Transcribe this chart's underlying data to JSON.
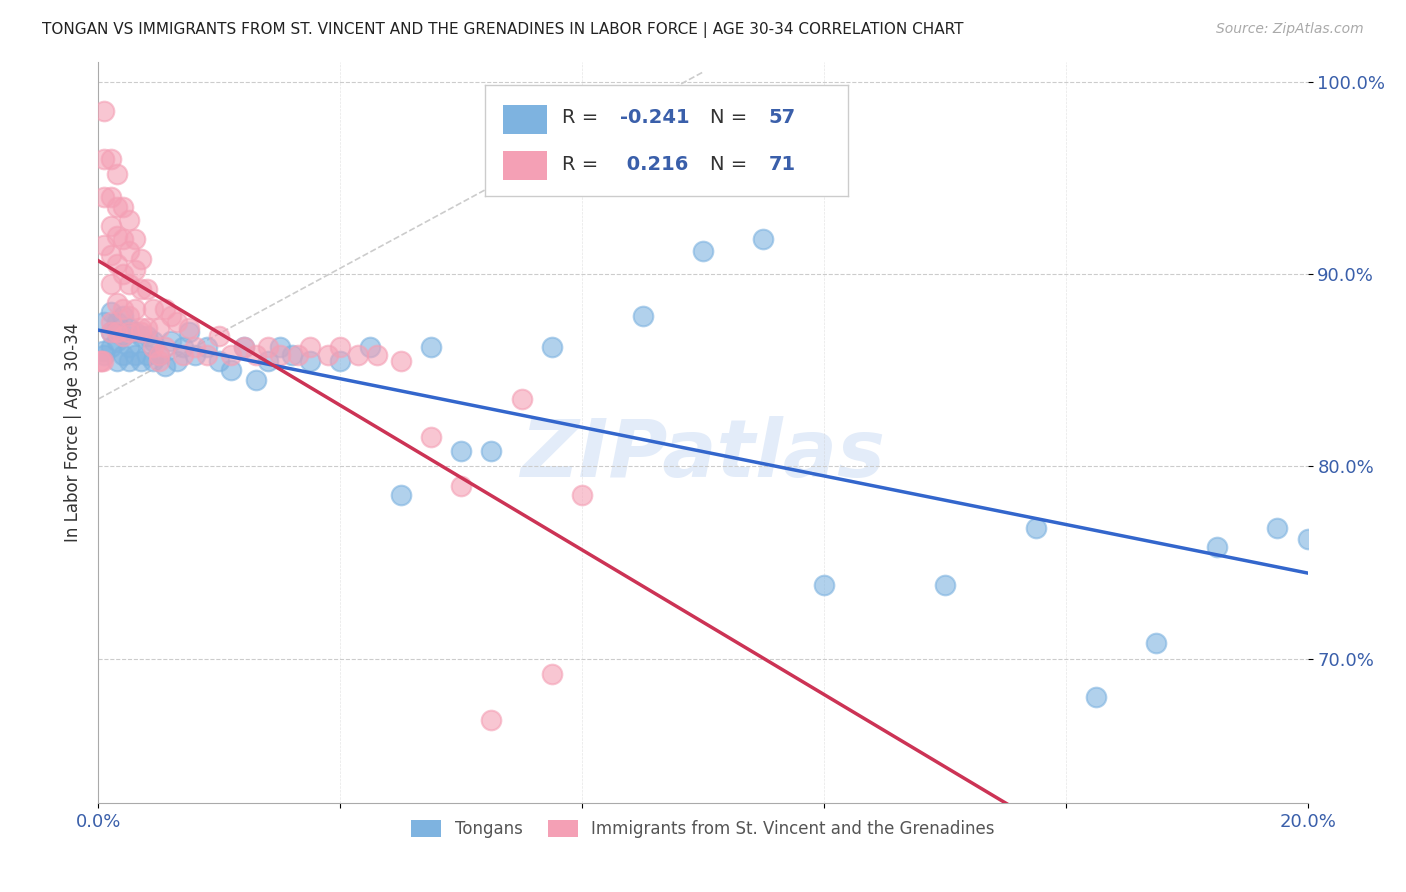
{
  "title": "TONGAN VS IMMIGRANTS FROM ST. VINCENT AND THE GRENADINES IN LABOR FORCE | AGE 30-34 CORRELATION CHART",
  "source": "Source: ZipAtlas.com",
  "ylabel": "In Labor Force | Age 30-34",
  "legend_label_blue": "Tongans",
  "legend_label_pink": "Immigrants from St. Vincent and the Grenadines",
  "R_blue": -0.241,
  "N_blue": 57,
  "R_pink": 0.216,
  "N_pink": 71,
  "blue_color": "#7eb3e0",
  "pink_color": "#f4a0b5",
  "trend_blue": "#3366cc",
  "trend_pink": "#cc3355",
  "ref_line_color": "#cccccc",
  "xmin": 0.0,
  "xmax": 0.2,
  "ymin": 0.625,
  "ymax": 1.01,
  "blue_x": [
    0.0008,
    0.001,
    0.001,
    0.002,
    0.002,
    0.002,
    0.003,
    0.003,
    0.003,
    0.004,
    0.004,
    0.004,
    0.005,
    0.005,
    0.005,
    0.006,
    0.006,
    0.007,
    0.007,
    0.008,
    0.008,
    0.009,
    0.009,
    0.01,
    0.011,
    0.012,
    0.013,
    0.014,
    0.015,
    0.016,
    0.018,
    0.02,
    0.022,
    0.024,
    0.026,
    0.028,
    0.03,
    0.032,
    0.035,
    0.04,
    0.045,
    0.05,
    0.055,
    0.06,
    0.065,
    0.075,
    0.09,
    0.1,
    0.11,
    0.12,
    0.14,
    0.155,
    0.165,
    0.175,
    0.185,
    0.195,
    0.2
  ],
  "blue_y": [
    0.86,
    0.858,
    0.875,
    0.862,
    0.87,
    0.88,
    0.855,
    0.865,
    0.875,
    0.858,
    0.868,
    0.878,
    0.855,
    0.862,
    0.872,
    0.858,
    0.87,
    0.855,
    0.868,
    0.858,
    0.868,
    0.855,
    0.865,
    0.858,
    0.852,
    0.865,
    0.855,
    0.862,
    0.87,
    0.858,
    0.862,
    0.855,
    0.85,
    0.862,
    0.845,
    0.855,
    0.862,
    0.858,
    0.855,
    0.855,
    0.862,
    0.785,
    0.862,
    0.808,
    0.808,
    0.862,
    0.878,
    0.912,
    0.918,
    0.738,
    0.738,
    0.768,
    0.68,
    0.708,
    0.758,
    0.768,
    0.762
  ],
  "pink_x": [
    0.0003,
    0.0005,
    0.0007,
    0.001,
    0.001,
    0.001,
    0.001,
    0.002,
    0.002,
    0.002,
    0.002,
    0.002,
    0.002,
    0.003,
    0.003,
    0.003,
    0.003,
    0.003,
    0.004,
    0.004,
    0.004,
    0.004,
    0.004,
    0.005,
    0.005,
    0.005,
    0.005,
    0.006,
    0.006,
    0.006,
    0.007,
    0.007,
    0.007,
    0.008,
    0.008,
    0.009,
    0.009,
    0.01,
    0.01,
    0.011,
    0.011,
    0.012,
    0.013,
    0.014,
    0.015,
    0.016,
    0.018,
    0.02,
    0.022,
    0.024,
    0.026,
    0.028,
    0.03,
    0.033,
    0.035,
    0.038,
    0.04,
    0.043,
    0.046,
    0.05,
    0.055,
    0.06,
    0.065,
    0.07,
    0.075,
    0.08,
    0.002,
    0.003,
    0.005,
    0.007,
    0.01
  ],
  "pink_y": [
    0.855,
    0.855,
    0.855,
    0.985,
    0.96,
    0.94,
    0.915,
    0.96,
    0.94,
    0.925,
    0.91,
    0.895,
    0.875,
    0.952,
    0.935,
    0.92,
    0.905,
    0.885,
    0.935,
    0.918,
    0.9,
    0.882,
    0.868,
    0.928,
    0.912,
    0.895,
    0.878,
    0.918,
    0.902,
    0.882,
    0.908,
    0.892,
    0.872,
    0.892,
    0.872,
    0.882,
    0.862,
    0.872,
    0.855,
    0.882,
    0.862,
    0.878,
    0.875,
    0.858,
    0.872,
    0.862,
    0.858,
    0.868,
    0.858,
    0.862,
    0.858,
    0.862,
    0.858,
    0.858,
    0.862,
    0.858,
    0.862,
    0.858,
    0.858,
    0.855,
    0.815,
    0.79,
    0.668,
    0.835,
    0.692,
    0.785,
    0.87,
    0.87,
    0.87,
    0.87,
    0.858
  ],
  "yticks": [
    0.7,
    0.8,
    0.9,
    1.0
  ],
  "ytick_labels": [
    "70.0%",
    "80.0%",
    "90.0%",
    "100.0%"
  ],
  "xticks": [
    0.0,
    0.04,
    0.08,
    0.12,
    0.16,
    0.2
  ],
  "xtick_labels_show": {
    "0.0": "0.0%",
    "0.2": "20.0%"
  }
}
